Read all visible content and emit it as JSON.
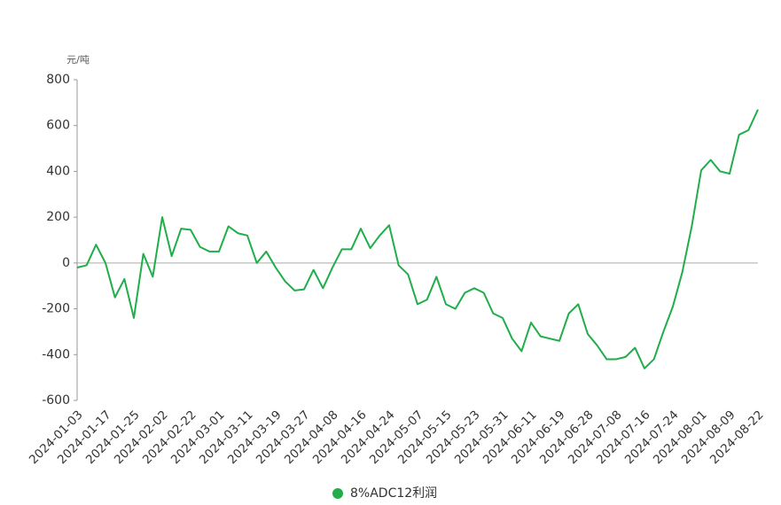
{
  "chart_data": {
    "type": "line",
    "y_label": "元/吨",
    "categories": [
      "2024-01-03",
      null,
      null,
      "2024-01-17",
      null,
      null,
      "2024-01-25",
      null,
      null,
      "2024-02-02",
      null,
      null,
      "2024-02-22",
      null,
      null,
      "2024-03-01",
      null,
      null,
      "2024-03-11",
      null,
      null,
      "2024-03-19",
      null,
      null,
      "2024-03-27",
      null,
      null,
      "2024-04-08",
      null,
      null,
      "2024-04-16",
      null,
      null,
      "2024-04-24",
      null,
      null,
      "2024-05-07",
      null,
      null,
      "2024-05-15",
      null,
      null,
      "2024-05-23",
      null,
      null,
      "2024-05-31",
      null,
      null,
      "2024-06-11",
      null,
      null,
      "2024-06-19",
      null,
      null,
      "2024-06-28",
      null,
      null,
      "2024-07-08",
      null,
      null,
      "2024-07-16",
      null,
      null,
      "2024-07-24",
      null,
      null,
      "2024-08-01",
      null,
      null,
      "2024-08-09",
      null,
      null,
      "2024-08-22"
    ],
    "series": [
      {
        "name": "8%ADC12利润",
        "color": "#1fae4a",
        "values": [
          -20,
          -10,
          80,
          0,
          -150,
          -70,
          -240,
          40,
          -60,
          200,
          30,
          150,
          145,
          70,
          50,
          50,
          160,
          130,
          120,
          0,
          50,
          -20,
          -80,
          -120,
          -115,
          -30,
          -110,
          -20,
          60,
          60,
          150,
          65,
          120,
          165,
          -10,
          -50,
          -180,
          -160,
          -60,
          -180,
          -200,
          -130,
          -110,
          -130,
          -220,
          -240,
          -330,
          -385,
          -260,
          -320,
          -330,
          -340,
          -220,
          -180,
          -310,
          -360,
          -420,
          -420,
          -410,
          -370,
          -460,
          -420,
          -300,
          -190,
          -40,
          160,
          405,
          450,
          400,
          390,
          560,
          580,
          670
        ]
      }
    ],
    "ylim": [
      -600,
      800
    ],
    "yticks": [
      -600,
      -400,
      -200,
      0,
      200,
      400,
      600,
      800
    ],
    "legend": "bottom"
  }
}
